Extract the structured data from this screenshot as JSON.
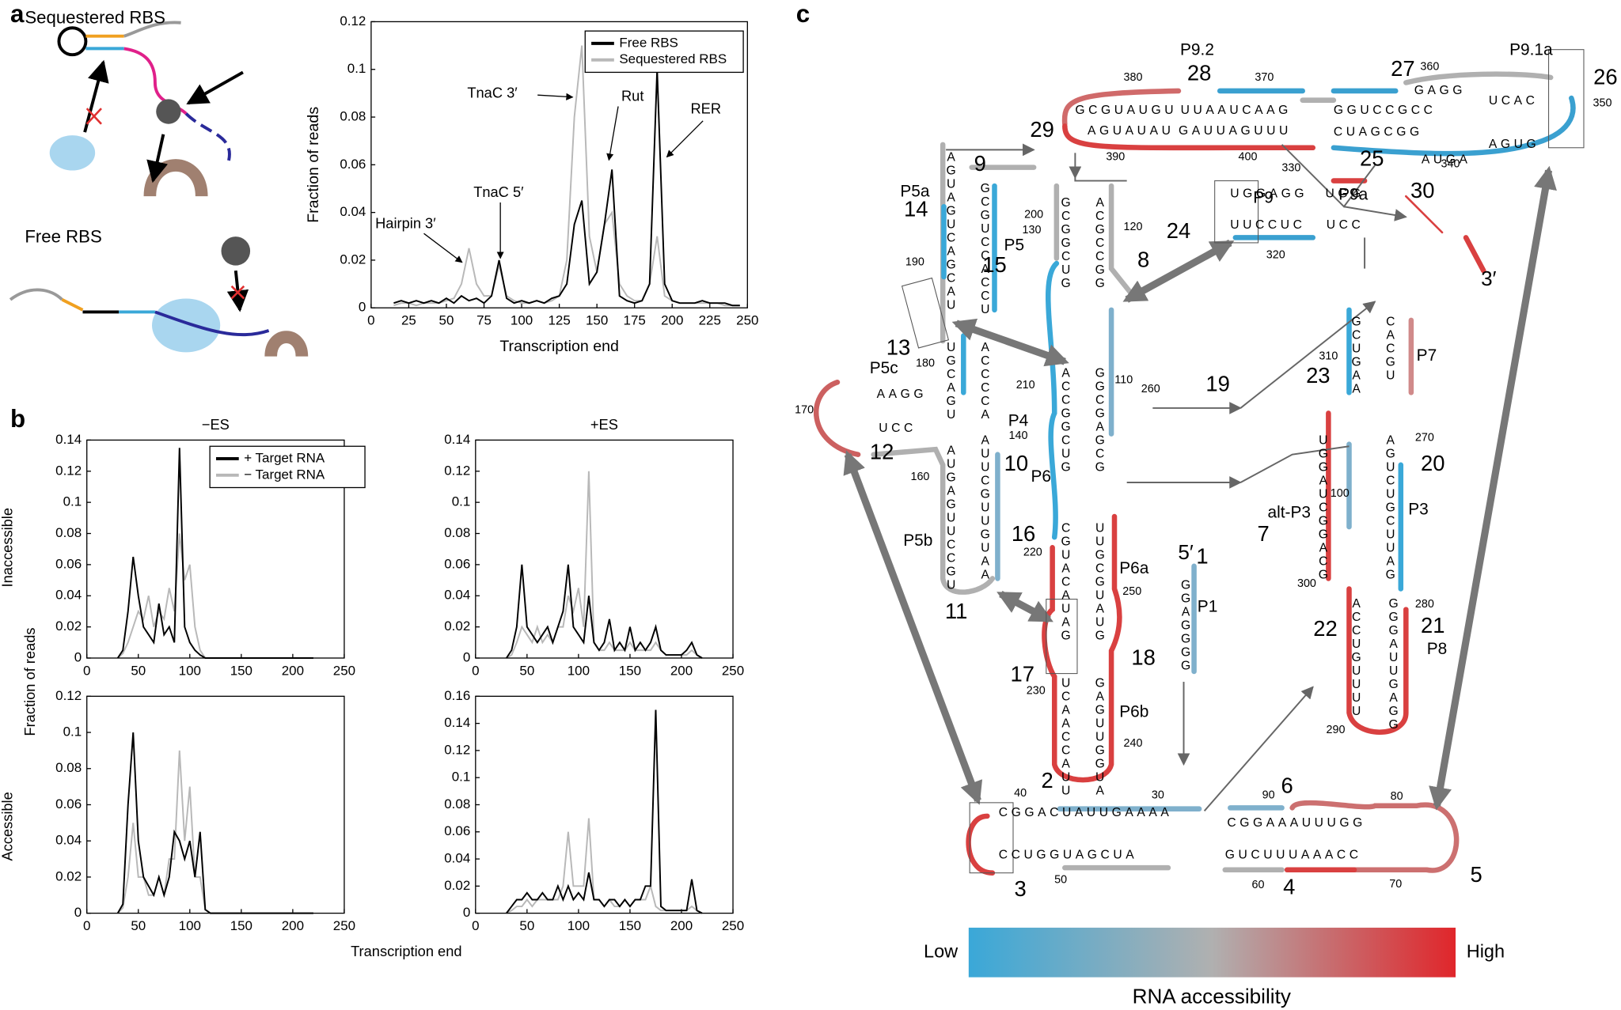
{
  "panel_labels": [
    "a",
    "b",
    "c"
  ],
  "panel_a": {
    "cartoon_labels": [
      "Sequestered RBS",
      "Free RBS"
    ]
  },
  "panel_b": {
    "xlabel": "Transcription end",
    "ylabel": "Fraction of reads",
    "row_labels": [
      {
        "label": "Inaccessible",
        "color": "#4fa7cf"
      },
      {
        "label": "Accessible",
        "color": "#d9544d"
      }
    ]
  },
  "chart_data": [
    {
      "type": "line",
      "xlabel": "Transcription end",
      "ylabel": "Fraction of reads",
      "xlim": [
        0,
        250
      ],
      "ylim": [
        0,
        0.12
      ],
      "xticks": [
        0,
        25,
        50,
        75,
        100,
        125,
        150,
        175,
        200,
        225,
        250
      ],
      "yticks": [
        0,
        0.02,
        0.04,
        0.06,
        0.08,
        0.1,
        0.12
      ],
      "legend": "upper right",
      "annotations": [
        {
          "label": "Hairpin 3′",
          "color": "#000000"
        },
        {
          "label": "TnaC 5′",
          "color": "#c42f86"
        },
        {
          "label": "TnaC 3′",
          "color": "#c42f86"
        },
        {
          "label": "Rut",
          "color": "#c42f86"
        },
        {
          "label": "RER",
          "color": "#4b4ba3"
        }
      ],
      "x": [
        15,
        20,
        25,
        30,
        35,
        40,
        45,
        50,
        55,
        60,
        65,
        70,
        75,
        80,
        85,
        90,
        95,
        100,
        105,
        110,
        115,
        120,
        125,
        130,
        135,
        140,
        145,
        150,
        155,
        160,
        165,
        170,
        175,
        180,
        185,
        190,
        195,
        200,
        205,
        210,
        215,
        220,
        225,
        230,
        235,
        240,
        245
      ],
      "series": [
        {
          "name": "Sequestered RBS",
          "color": "#b8b8b8",
          "values": [
            0.001,
            0.002,
            0.002,
            0.001,
            0.002,
            0.002,
            0.002,
            0.003,
            0.004,
            0.01,
            0.025,
            0.01,
            0.005,
            0.005,
            0.018,
            0.005,
            0.003,
            0.002,
            0.002,
            0.003,
            0.002,
            0.003,
            0.005,
            0.02,
            0.08,
            0.11,
            0.03,
            0.015,
            0.035,
            0.04,
            0.01,
            0.005,
            0.003,
            0.003,
            0.01,
            0.03,
            0.005,
            0.003,
            0.002,
            0.002,
            0.002,
            0.002,
            0.002,
            0.002,
            0.001,
            0.001,
            0.001
          ]
        },
        {
          "name": "Free RBS",
          "color": "#000000",
          "values": [
            0.002,
            0.003,
            0.002,
            0.003,
            0.002,
            0.003,
            0.002,
            0.004,
            0.002,
            0.005,
            0.003,
            0.004,
            0.002,
            0.005,
            0.02,
            0.004,
            0.002,
            0.003,
            0.002,
            0.003,
            0.002,
            0.004,
            0.005,
            0.01,
            0.035,
            0.045,
            0.01,
            0.015,
            0.035,
            0.058,
            0.005,
            0.003,
            0.002,
            0.003,
            0.01,
            0.1,
            0.01,
            0.003,
            0.002,
            0.002,
            0.002,
            0.003,
            0.002,
            0.002,
            0.002,
            0.001,
            0.001
          ]
        }
      ]
    },
    {
      "type": "line",
      "title": "−ES",
      "xlim": [
        0,
        250
      ],
      "ylim": [
        0,
        0.14
      ],
      "xticks": [
        0,
        50,
        100,
        150,
        200,
        250
      ],
      "yticks": [
        0,
        0.02,
        0.04,
        0.06,
        0.08,
        0.1,
        0.12,
        0.14
      ],
      "legend": "upper right",
      "x": [
        30,
        35,
        40,
        45,
        50,
        55,
        60,
        65,
        70,
        75,
        80,
        85,
        90,
        95,
        100,
        105,
        110,
        115,
        120,
        125,
        130,
        135,
        140,
        145,
        150,
        155,
        160,
        165,
        170,
        175,
        180,
        185,
        190,
        195,
        200,
        205,
        210,
        215,
        220
      ],
      "series": [
        {
          "name": "− Target RNA",
          "color": "#b8b8b8",
          "values": [
            0,
            0.003,
            0.01,
            0.02,
            0.03,
            0.025,
            0.04,
            0.02,
            0.03,
            0.025,
            0.045,
            0.03,
            0.08,
            0.05,
            0.06,
            0.02,
            0.005,
            0,
            0,
            0,
            0,
            0,
            0,
            0,
            0,
            0,
            0,
            0,
            0,
            0,
            0,
            0,
            0,
            0,
            0,
            0,
            0,
            0,
            0
          ]
        },
        {
          "name": "+ Target RNA",
          "color": "#000000",
          "values": [
            0,
            0.005,
            0.03,
            0.065,
            0.04,
            0.02,
            0.015,
            0.01,
            0.035,
            0.015,
            0.02,
            0.01,
            0.135,
            0.02,
            0.01,
            0.005,
            0.002,
            0,
            0,
            0,
            0,
            0,
            0,
            0,
            0,
            0,
            0,
            0,
            0,
            0,
            0,
            0,
            0,
            0,
            0,
            0,
            0,
            0,
            0
          ]
        }
      ]
    },
    {
      "type": "line",
      "title": "+ES",
      "xlim": [
        0,
        250
      ],
      "ylim": [
        0,
        0.14
      ],
      "xticks": [
        0,
        50,
        100,
        150,
        200,
        250
      ],
      "yticks": [
        0,
        0.02,
        0.04,
        0.06,
        0.08,
        0.1,
        0.12,
        0.14
      ],
      "x": [
        30,
        35,
        40,
        45,
        50,
        55,
        60,
        65,
        70,
        75,
        80,
        85,
        90,
        95,
        100,
        105,
        110,
        115,
        120,
        125,
        130,
        135,
        140,
        145,
        150,
        155,
        160,
        165,
        170,
        175,
        180,
        185,
        190,
        195,
        200,
        205,
        210,
        215,
        220
      ],
      "series": [
        {
          "name": "− Target RNA",
          "color": "#b8b8b8",
          "values": [
            0,
            0.002,
            0.01,
            0.02,
            0.015,
            0.01,
            0.02,
            0.01,
            0.015,
            0.01,
            0.02,
            0.02,
            0.04,
            0.03,
            0.045,
            0.02,
            0.12,
            0.01,
            0.005,
            0.005,
            0.01,
            0.005,
            0.005,
            0.005,
            0.01,
            0.005,
            0.005,
            0.005,
            0.005,
            0.01,
            0.005,
            0.002,
            0.002,
            0.002,
            0.002,
            0.002,
            0.005,
            0.002,
            0
          ]
        },
        {
          "name": "+ Target RNA",
          "color": "#000000",
          "values": [
            0,
            0.005,
            0.02,
            0.06,
            0.02,
            0.015,
            0.01,
            0.015,
            0.02,
            0.01,
            0.02,
            0.03,
            0.06,
            0.02,
            0.015,
            0.01,
            0.04,
            0.01,
            0.005,
            0.01,
            0.025,
            0.005,
            0.01,
            0.005,
            0.02,
            0.005,
            0.01,
            0.005,
            0.01,
            0.02,
            0.005,
            0.002,
            0.002,
            0.002,
            0.002,
            0.005,
            0.01,
            0.002,
            0
          ]
        }
      ]
    },
    {
      "type": "line",
      "xlim": [
        0,
        250
      ],
      "ylim": [
        0,
        0.12
      ],
      "xticks": [
        0,
        50,
        100,
        150,
        200,
        250
      ],
      "yticks": [
        0,
        0.02,
        0.04,
        0.06,
        0.08,
        0.1,
        0.12
      ],
      "x": [
        30,
        35,
        40,
        45,
        50,
        55,
        60,
        65,
        70,
        75,
        80,
        85,
        90,
        95,
        100,
        105,
        110,
        115,
        120,
        125,
        130,
        135,
        140,
        145,
        150,
        155,
        160,
        165,
        170,
        175,
        180,
        185,
        190,
        195,
        200,
        205,
        210,
        215,
        220
      ],
      "series": [
        {
          "name": "− Target RNA",
          "color": "#b8b8b8",
          "values": [
            0,
            0.003,
            0.02,
            0.05,
            0.02,
            0.02,
            0.01,
            0.01,
            0.02,
            0.01,
            0.03,
            0.03,
            0.09,
            0.04,
            0.07,
            0.02,
            0.02,
            0.002,
            0,
            0,
            0,
            0,
            0,
            0,
            0,
            0,
            0,
            0,
            0,
            0,
            0,
            0,
            0,
            0,
            0,
            0,
            0,
            0,
            0
          ]
        },
        {
          "name": "+ Target RNA",
          "color": "#000000",
          "values": [
            0,
            0.005,
            0.06,
            0.1,
            0.04,
            0.02,
            0.015,
            0.01,
            0.02,
            0.01,
            0.02,
            0.045,
            0.04,
            0.03,
            0.04,
            0.02,
            0.045,
            0.002,
            0,
            0,
            0,
            0,
            0,
            0,
            0,
            0,
            0,
            0,
            0,
            0,
            0,
            0,
            0,
            0,
            0,
            0,
            0,
            0,
            0
          ]
        }
      ]
    },
    {
      "type": "line",
      "xlim": [
        0,
        250
      ],
      "ylim": [
        0,
        0.16
      ],
      "xticks": [
        0,
        50,
        100,
        150,
        200,
        250
      ],
      "yticks": [
        0,
        0.02,
        0.04,
        0.06,
        0.08,
        0.1,
        0.12,
        0.14,
        0.16
      ],
      "x": [
        30,
        35,
        40,
        45,
        50,
        55,
        60,
        65,
        70,
        75,
        80,
        85,
        90,
        95,
        100,
        105,
        110,
        115,
        120,
        125,
        130,
        135,
        140,
        145,
        150,
        155,
        160,
        165,
        170,
        175,
        180,
        185,
        190,
        195,
        200,
        205,
        210,
        215,
        220
      ],
      "series": [
        {
          "name": "− Target RNA",
          "color": "#b8b8b8",
          "values": [
            0,
            0.002,
            0.005,
            0.005,
            0.01,
            0.005,
            0.01,
            0.01,
            0.01,
            0.01,
            0.01,
            0.02,
            0.06,
            0.02,
            0.02,
            0.02,
            0.07,
            0.01,
            0.01,
            0.005,
            0.01,
            0.005,
            0.005,
            0.01,
            0.005,
            0.01,
            0.01,
            0.01,
            0.02,
            0.005,
            0.002,
            0.002,
            0.002,
            0.002,
            0.002,
            0.002,
            0.005,
            0.002,
            0
          ]
        },
        {
          "name": "+ Target RNA",
          "color": "#000000",
          "values": [
            0,
            0.005,
            0.01,
            0.01,
            0.015,
            0.01,
            0.01,
            0.015,
            0.01,
            0.01,
            0.02,
            0.01,
            0.02,
            0.01,
            0.015,
            0.01,
            0.03,
            0.01,
            0.01,
            0.005,
            0.01,
            0.01,
            0.005,
            0.01,
            0.005,
            0.01,
            0.01,
            0.02,
            0.02,
            0.15,
            0.005,
            0.002,
            0.002,
            0.002,
            0.002,
            0.002,
            0.025,
            0.002,
            0
          ]
        }
      ]
    }
  ],
  "diagram": {
    "helices": [
      "P9.2",
      "P9.1a",
      "P5a",
      "P9",
      "P9a",
      "P5",
      "P4",
      "P5c",
      "P7",
      "P6",
      "alt-P3",
      "P3",
      "P5b",
      "P6a",
      "P1",
      "P8",
      "P6b"
    ],
    "ends": [
      "5′",
      "3′"
    ],
    "regions": [
      {
        "label": 1,
        "color": "#7fb0cc"
      },
      {
        "label": 2,
        "color": "#d94040"
      },
      {
        "label": 3,
        "color": "#b0b0b0"
      },
      {
        "label": 4,
        "color": "#d94040"
      },
      {
        "label": 5,
        "color": "#d08a8a"
      },
      {
        "label": 6,
        "color": "#7fb0cc"
      },
      {
        "label": 7,
        "color": "#7fb0cc"
      },
      {
        "label": 8,
        "color": "#b0b0b0"
      },
      {
        "label": 9,
        "color": "#3aa8d8"
      },
      {
        "label": 10,
        "color": "#7fb0cc"
      },
      {
        "label": 11,
        "color": "#b0b0b0"
      },
      {
        "label": 12,
        "color": "#cc6060"
      },
      {
        "label": 13,
        "color": "#7fb0cc"
      },
      {
        "label": 14,
        "color": "#b0b0b0"
      },
      {
        "label": 15,
        "color": "#3aa8d8"
      },
      {
        "label": 16,
        "color": "#cc6060"
      },
      {
        "label": 17,
        "color": "#d94040"
      },
      {
        "label": 18,
        "color": "#cc6060"
      },
      {
        "label": 19,
        "color": "#d08a8a"
      },
      {
        "label": 20,
        "color": "#3aa8d8"
      },
      {
        "label": 21,
        "color": "#d94040"
      },
      {
        "label": 22,
        "color": "#cc6060"
      },
      {
        "label": 23,
        "color": "#3aa8d8"
      },
      {
        "label": 24,
        "color": "#cc6060"
      },
      {
        "label": 25,
        "color": "#3aa8d8"
      },
      {
        "label": 26,
        "color": "#b0b0b0"
      },
      {
        "label": 27,
        "color": "#3aa8d8"
      },
      {
        "label": 28,
        "color": "#cc6060"
      },
      {
        "label": 29,
        "color": "#d94040"
      },
      {
        "label": 30,
        "color": "#d94040"
      }
    ],
    "positions": [
      380,
      370,
      360,
      350,
      390,
      400,
      340,
      330,
      320,
      200,
      120,
      130,
      190,
      180,
      110,
      260,
      210,
      310,
      270,
      140,
      170,
      160,
      100,
      220,
      250,
      300,
      280,
      230,
      240,
      290,
      40,
      30,
      90,
      80,
      50,
      60,
      70
    ],
    "strands": [
      "GCGUAUGU",
      "UUAAUCAAG",
      "AGUAUAU",
      "GAUUAGUUU",
      "GGUCCGCC",
      "CUAGCGG",
      "GAGG",
      "UCAC",
      "AUGA",
      "AGUG",
      "UGGAGG",
      "UGG",
      "UUCCUC",
      "UCC",
      "AAGG",
      "UCC",
      "CGGACUAUUGAAAA",
      "CCUGGUAGCUA",
      "CGGAAAUUUGG",
      "GUCUUUAAACC",
      "AGUAGUCAGCAU",
      "GCGUCCACCU",
      "UGCAGU",
      "ACCCCA",
      "AUGAGUUCCGU",
      "AUUCGUUGUAA",
      "GCGGCUG",
      "ACGCCGG",
      "ACCGGCUG",
      "GGCGAGCG",
      "CGUACAUAG",
      "UUGCGUAUG",
      "UCAACCAUU",
      "GAGUUGGUA",
      "GGAGGGG",
      "GCUGAA",
      "CACGU",
      "UGGAUCGGACG",
      "AGUCUGCUUAG",
      "ACCUGUUUU",
      "GGGAUUGAGG"
    ],
    "colorbar": {
      "low": "Low",
      "high": "High",
      "title": "RNA accessibility",
      "colors": [
        "#3aa8d8",
        "#b0b0b0",
        "#e0262b"
      ]
    }
  }
}
